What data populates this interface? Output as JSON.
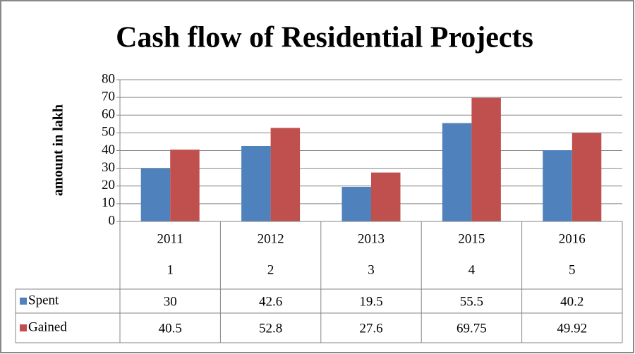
{
  "chart_data": {
    "type": "bar",
    "title": "Cash flow of Residential Projects",
    "y_label": "amount in lakh",
    "categories": [
      "2011",
      "2012",
      "2013",
      "2015",
      "2016"
    ],
    "sub_categories": [
      "1",
      "2",
      "3",
      "4",
      "5"
    ],
    "series": [
      {
        "name": "Spent",
        "color": "#4f81bd",
        "values": [
          30,
          42.6,
          19.5,
          55.5,
          40.2
        ]
      },
      {
        "name": "Gained",
        "color": "#c0504d",
        "values": [
          40.5,
          52.8,
          27.6,
          69.75,
          49.92
        ]
      }
    ],
    "ylim": [
      0,
      80
    ],
    "yticks": [
      0,
      10,
      20,
      30,
      40,
      50,
      60,
      70,
      80
    ],
    "grid": true
  }
}
